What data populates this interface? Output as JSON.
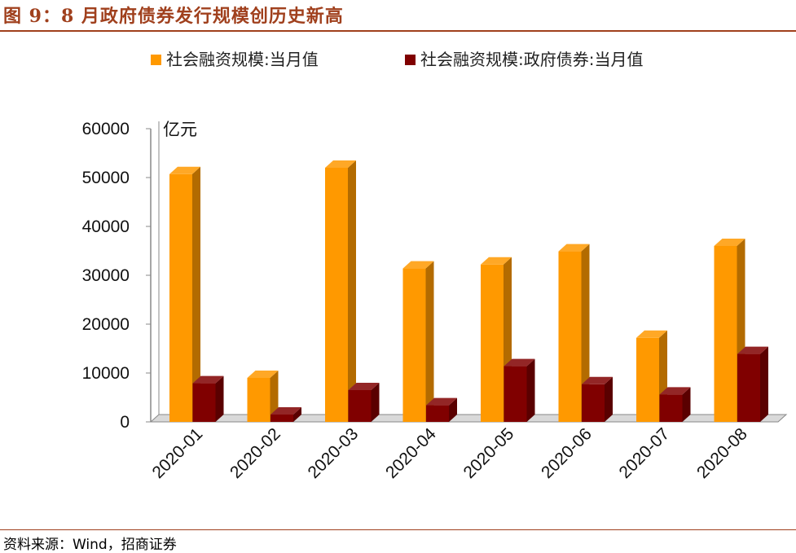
{
  "title": "图 9：8 月政府债券发行规模创历史新高",
  "source": "资料来源：Wind，招商证券",
  "colors": {
    "accent": "#a0401d",
    "series1": "#ff9900",
    "series2": "#800000"
  },
  "chart_data": {
    "type": "bar",
    "categories": [
      "2020-01",
      "2020-02",
      "2020-03",
      "2020-04",
      "2020-05",
      "2020-06",
      "2020-07",
      "2020-08"
    ],
    "series": [
      {
        "name": "社会融资规模:当月值",
        "values": [
          50700,
          9000,
          52000,
          31400,
          32200,
          34900,
          17200,
          36000
        ]
      },
      {
        "name": "社会融资规模:政府债券:当月值",
        "values": [
          7900,
          1500,
          6500,
          3400,
          11400,
          7700,
          5600,
          13900
        ]
      }
    ],
    "unit_label": "亿元",
    "ylim": [
      0,
      60000
    ],
    "yticks": [
      0,
      10000,
      20000,
      30000,
      40000,
      50000,
      60000
    ],
    "legend_position": "top",
    "grid": false,
    "style": "3d-bar"
  }
}
